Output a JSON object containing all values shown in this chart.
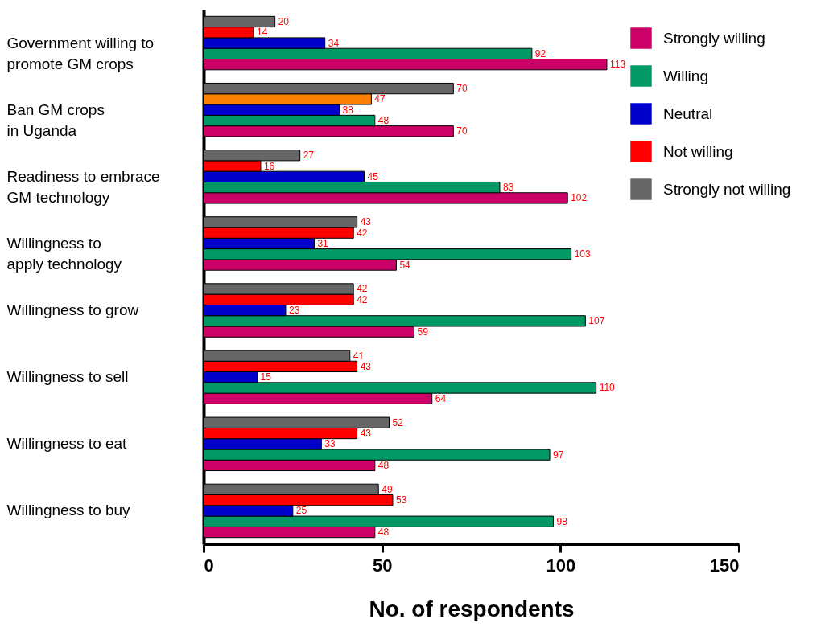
{
  "chart_data": {
    "type": "bar",
    "orientation": "horizontal",
    "xlabel": "No. of respondents",
    "categories": [
      "Government willing to\npromote GM crops",
      "Ban GM crops\nin  Uganda",
      "Readiness to embrace\nGM technology",
      "Willingness to\napply technology",
      "Willingness to grow",
      "Willingness to sell",
      "Willingness to eat",
      "Willingness to buy"
    ],
    "series": [
      {
        "name": "Strongly willing",
        "color": "#cc0066",
        "values": [
          113,
          70,
          102,
          54,
          59,
          64,
          48,
          48
        ]
      },
      {
        "name": "Willing",
        "color": "#009966",
        "values": [
          92,
          48,
          83,
          103,
          107,
          110,
          97,
          98
        ]
      },
      {
        "name": "Neutral",
        "color": "#0000cc",
        "values": [
          34,
          38,
          45,
          31,
          23,
          15,
          33,
          25
        ]
      },
      {
        "name": "Not willing",
        "color": "#ff0000",
        "colors": [
          "#ff0000",
          "#ff8000",
          "#ff0000",
          "#ff0000",
          "#ff0000",
          "#ff0000",
          "#ff0000",
          "#ff0000"
        ],
        "values": [
          14,
          47,
          16,
          42,
          42,
          43,
          43,
          53
        ]
      },
      {
        "name": "Strongly not willing",
        "color": "#666666",
        "values": [
          20,
          70,
          27,
          43,
          42,
          41,
          52,
          49
        ]
      }
    ],
    "xlim": [
      0,
      150
    ],
    "xticks": [
      0,
      50,
      100,
      150
    ],
    "grid": false,
    "legend": "top right",
    "data_labels": true
  }
}
